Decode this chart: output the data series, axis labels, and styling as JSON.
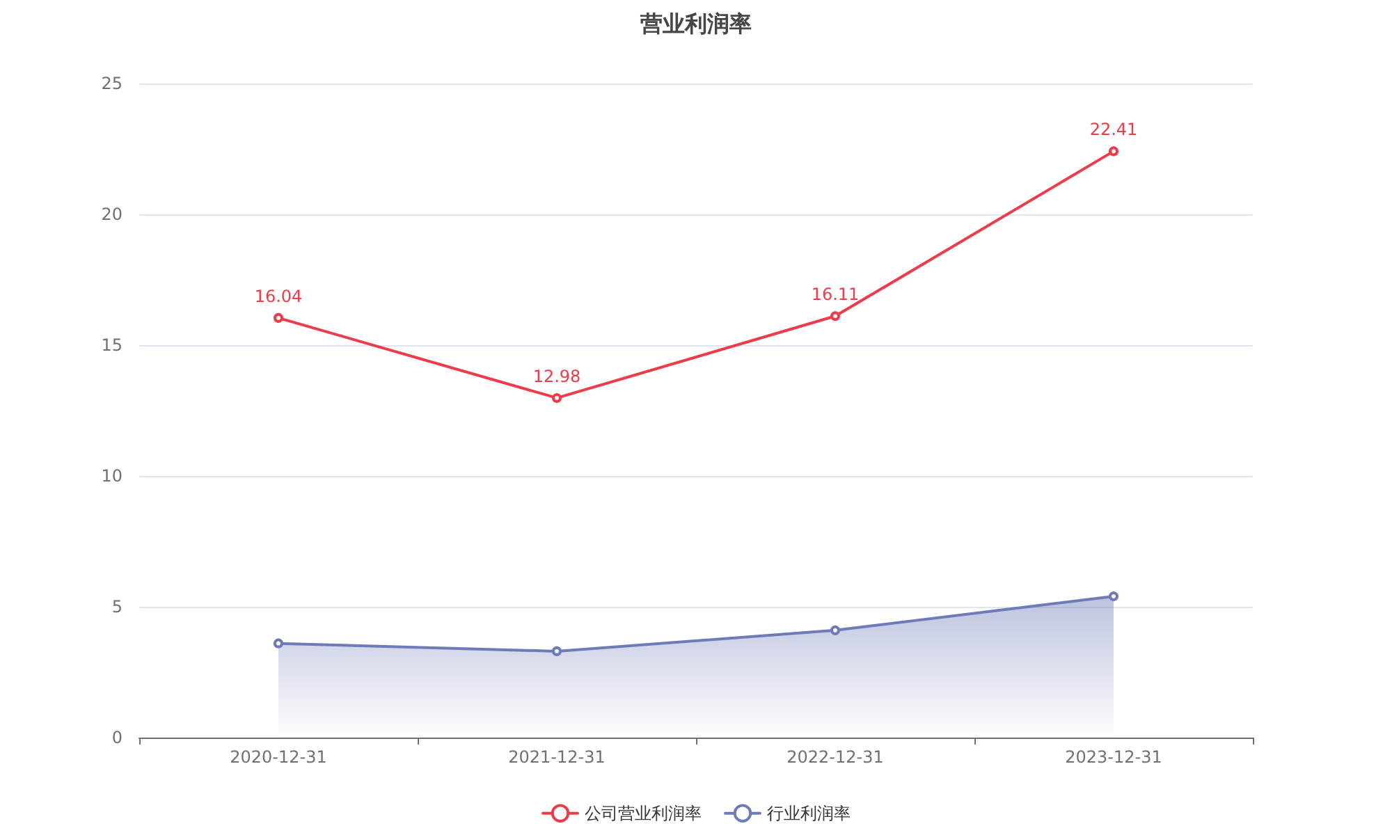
{
  "chart_data": {
    "type": "line",
    "title": "营业利润率",
    "categories": [
      "2020-12-31",
      "2021-12-31",
      "2022-12-31",
      "2023-12-31"
    ],
    "series": [
      {
        "name": "公司营业利润率",
        "color": "#ee3b4a",
        "values": [
          16.04,
          12.98,
          16.11,
          22.41
        ],
        "value_labels": [
          "16.04",
          "12.98",
          "16.11",
          "22.41"
        ]
      },
      {
        "name": "行业利润率",
        "type": "area",
        "color": "#6e7bb8",
        "values": [
          3.6,
          3.3,
          4.1,
          5.4
        ]
      }
    ],
    "ylim": [
      0,
      25
    ],
    "yticks": [
      0,
      5,
      10,
      15,
      20,
      25
    ],
    "grid": "y",
    "legend": "bottom",
    "marker": "circle",
    "line_style": "solid"
  }
}
